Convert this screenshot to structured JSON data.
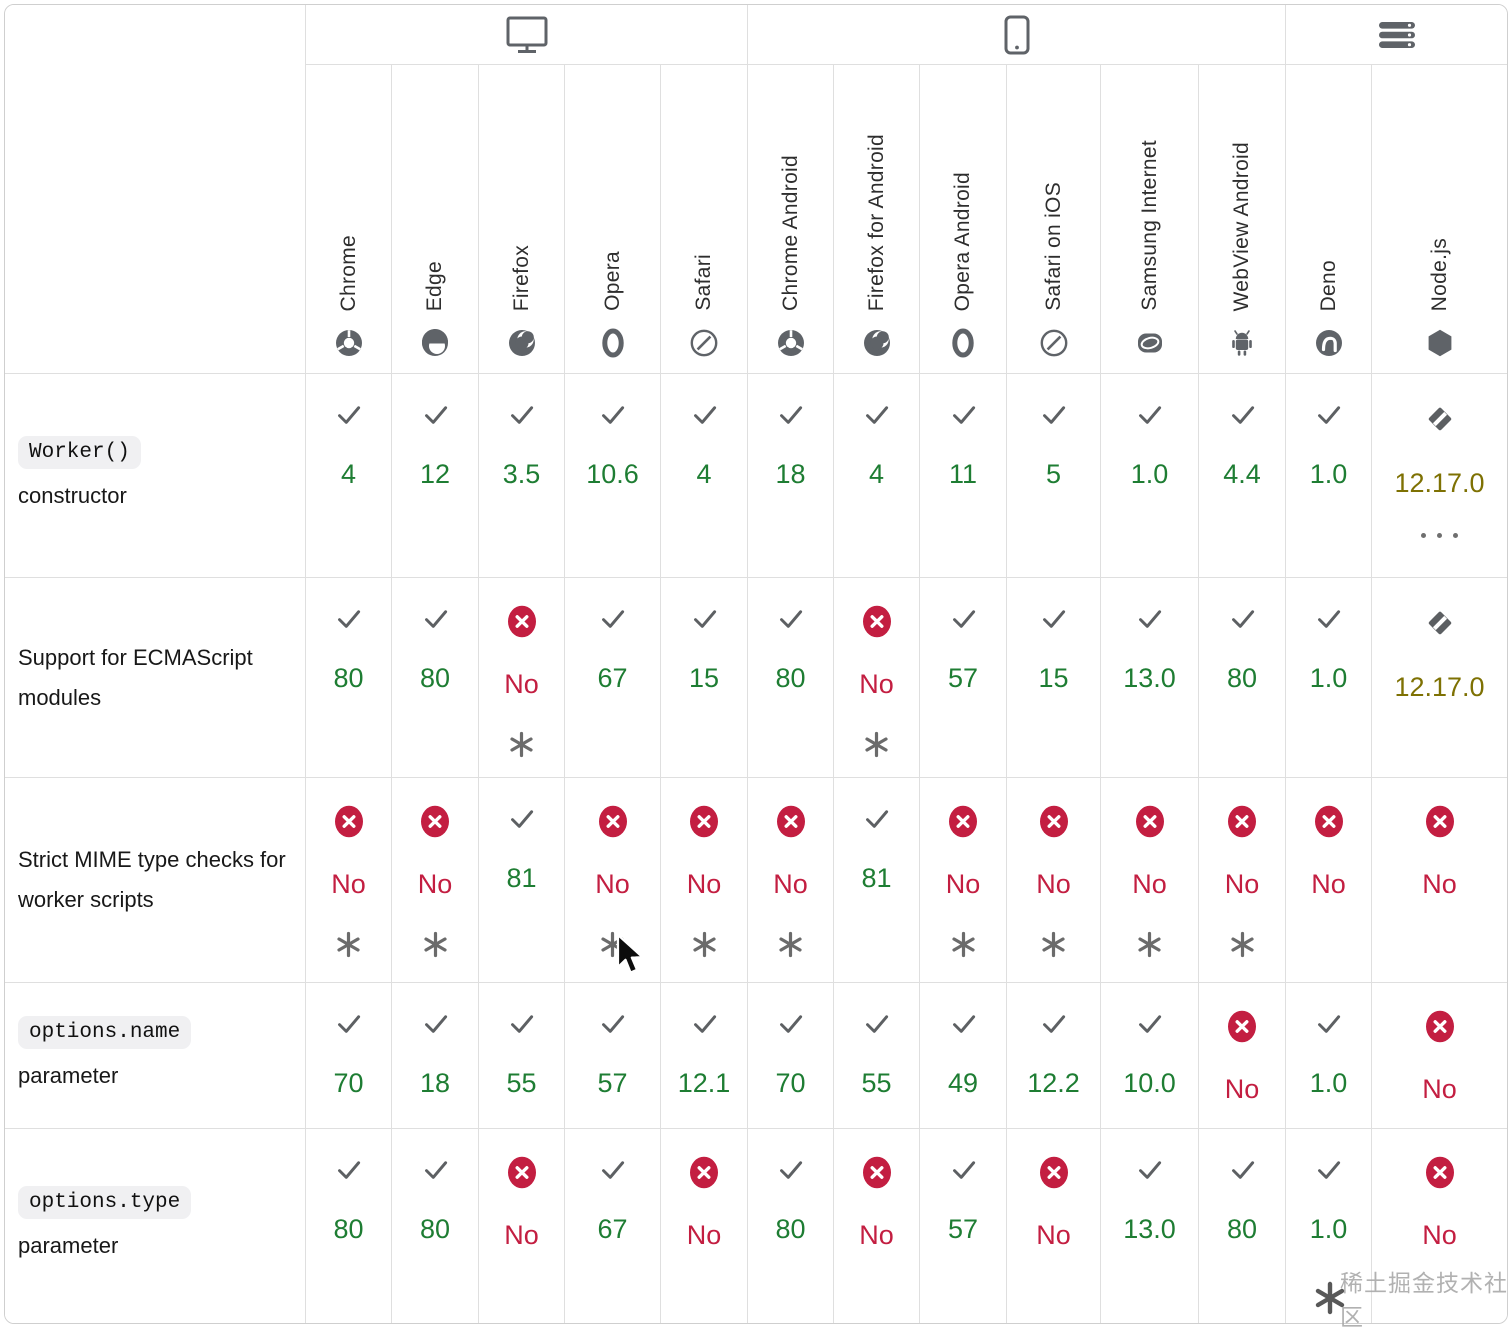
{
  "table": {
    "sections": [
      {
        "name": "desktop",
        "icon": "desktop-icon",
        "span": 5
      },
      {
        "name": "mobile",
        "icon": "mobile-icon",
        "span": 6
      },
      {
        "name": "server",
        "icon": "server-icon",
        "span": 2
      }
    ],
    "columns": [
      {
        "label": "Chrome",
        "icon": "chrome-icon"
      },
      {
        "label": "Edge",
        "icon": "edge-icon"
      },
      {
        "label": "Firefox",
        "icon": "firefox-icon"
      },
      {
        "label": "Opera",
        "icon": "opera-icon"
      },
      {
        "label": "Safari",
        "icon": "safari-icon"
      },
      {
        "label": "Chrome Android",
        "icon": "chrome-icon"
      },
      {
        "label": "Firefox for Android",
        "icon": "firefox-icon"
      },
      {
        "label": "Opera Android",
        "icon": "opera-icon"
      },
      {
        "label": "Safari on iOS",
        "icon": "safari-icon"
      },
      {
        "label": "Samsung Internet",
        "icon": "samsung-internet-icon"
      },
      {
        "label": "WebView Android",
        "icon": "android-icon"
      },
      {
        "label": "Deno",
        "icon": "deno-icon"
      },
      {
        "label": "Node.js",
        "icon": "nodejs-icon"
      }
    ],
    "rows": [
      {
        "label_code": "Worker()",
        "label_text": "constructor",
        "cells": [
          {
            "status": "yes",
            "value": "4"
          },
          {
            "status": "yes",
            "value": "12"
          },
          {
            "status": "yes",
            "value": "3.5"
          },
          {
            "status": "yes",
            "value": "10.6"
          },
          {
            "status": "yes",
            "value": "4"
          },
          {
            "status": "yes",
            "value": "18"
          },
          {
            "status": "yes",
            "value": "4"
          },
          {
            "status": "yes",
            "value": "11"
          },
          {
            "status": "yes",
            "value": "5"
          },
          {
            "status": "yes",
            "value": "1.0"
          },
          {
            "status": "yes",
            "value": "4.4"
          },
          {
            "status": "yes",
            "value": "1.0"
          },
          {
            "status": "partial",
            "value": "12.17.0",
            "more": true
          }
        ]
      },
      {
        "label_code": null,
        "label_text": "Support for ECMAScript modules",
        "cells": [
          {
            "status": "yes",
            "value": "80"
          },
          {
            "status": "yes",
            "value": "80"
          },
          {
            "status": "no",
            "value": "No",
            "footnote": true
          },
          {
            "status": "yes",
            "value": "67"
          },
          {
            "status": "yes",
            "value": "15"
          },
          {
            "status": "yes",
            "value": "80"
          },
          {
            "status": "no",
            "value": "No",
            "footnote": true
          },
          {
            "status": "yes",
            "value": "57"
          },
          {
            "status": "yes",
            "value": "15"
          },
          {
            "status": "yes",
            "value": "13.0"
          },
          {
            "status": "yes",
            "value": "80"
          },
          {
            "status": "yes",
            "value": "1.0"
          },
          {
            "status": "partial",
            "value": "12.17.0"
          }
        ]
      },
      {
        "label_code": null,
        "label_text": "Strict MIME type checks for worker scripts",
        "cells": [
          {
            "status": "no",
            "value": "No",
            "footnote": true
          },
          {
            "status": "no",
            "value": "No",
            "footnote": true
          },
          {
            "status": "yes",
            "value": "81"
          },
          {
            "status": "no",
            "value": "No",
            "footnote": true
          },
          {
            "status": "no",
            "value": "No",
            "footnote": true
          },
          {
            "status": "no",
            "value": "No",
            "footnote": true
          },
          {
            "status": "yes",
            "value": "81"
          },
          {
            "status": "no",
            "value": "No",
            "footnote": true
          },
          {
            "status": "no",
            "value": "No",
            "footnote": true
          },
          {
            "status": "no",
            "value": "No",
            "footnote": true
          },
          {
            "status": "no",
            "value": "No",
            "footnote": true
          },
          {
            "status": "no",
            "value": "No"
          },
          {
            "status": "no",
            "value": "No"
          }
        ]
      },
      {
        "label_code": "options.name",
        "label_text": "parameter",
        "cells": [
          {
            "status": "yes",
            "value": "70"
          },
          {
            "status": "yes",
            "value": "18"
          },
          {
            "status": "yes",
            "value": "55"
          },
          {
            "status": "yes",
            "value": "57"
          },
          {
            "status": "yes",
            "value": "12.1"
          },
          {
            "status": "yes",
            "value": "70"
          },
          {
            "status": "yes",
            "value": "55"
          },
          {
            "status": "yes",
            "value": "49"
          },
          {
            "status": "yes",
            "value": "12.2"
          },
          {
            "status": "yes",
            "value": "10.0"
          },
          {
            "status": "no",
            "value": "No"
          },
          {
            "status": "yes",
            "value": "1.0"
          },
          {
            "status": "no",
            "value": "No"
          }
        ]
      },
      {
        "label_code": "options.type",
        "label_text": "parameter",
        "cells": [
          {
            "status": "yes",
            "value": "80"
          },
          {
            "status": "yes",
            "value": "80"
          },
          {
            "status": "no",
            "value": "No"
          },
          {
            "status": "yes",
            "value": "67"
          },
          {
            "status": "no",
            "value": "No"
          },
          {
            "status": "yes",
            "value": "80"
          },
          {
            "status": "no",
            "value": "No"
          },
          {
            "status": "yes",
            "value": "57"
          },
          {
            "status": "no",
            "value": "No"
          },
          {
            "status": "yes",
            "value": "13.0"
          },
          {
            "status": "yes",
            "value": "80"
          },
          {
            "status": "yes",
            "value": "1.0"
          },
          {
            "status": "no",
            "value": "No"
          }
        ]
      }
    ]
  },
  "status_icons": {
    "yes": "check-icon",
    "no": "cross-circle-icon",
    "partial": "partial-diamond-icon",
    "footnote": "asterisk-footnote-icon",
    "more": "more-dots-icon"
  },
  "watermark": {
    "logo_icon": "juejin-asterisk-logo-icon",
    "text": "稀土掘金技术社区"
  },
  "colors": {
    "supported_green": "#1e7d33",
    "unsupported_red": "#c31e41",
    "partial_olive": "#7e7103",
    "icon_gray": "#5f6368",
    "grid_line": "#dfdfdf"
  }
}
